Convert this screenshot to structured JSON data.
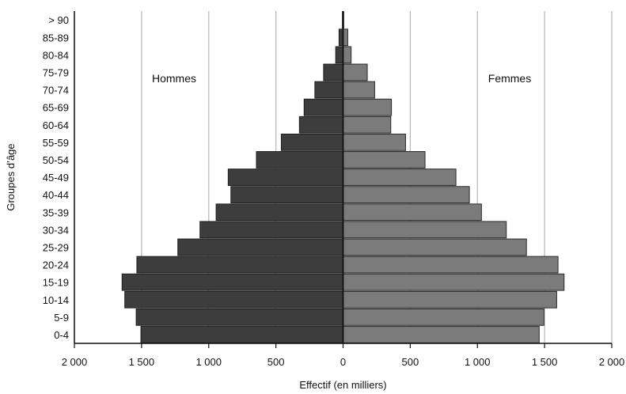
{
  "chart_data": {
    "type": "bar",
    "orientation": "horizontal",
    "layout": "population-pyramid",
    "title": "",
    "xlabel": "Effectif (en milliers)",
    "ylabel": "Groupes d’âge",
    "xlim": [
      -2000,
      2000
    ],
    "grid": true,
    "x_ticks": [
      -2000,
      -1500,
      -1000,
      -500,
      0,
      500,
      1000,
      1500,
      2000
    ],
    "x_tick_labels": [
      "2 000",
      "1 500",
      "1 000",
      "500",
      "0",
      "500",
      "1 000",
      "1 500",
      "2 000"
    ],
    "categories": [
      "0-4",
      "5-9",
      "10-14",
      "15-19",
      "20-24",
      "25-29",
      "30-34",
      "35-39",
      "40-44",
      "45-49",
      "50-54",
      "55-59",
      "60-64",
      "65-69",
      "70-74",
      "75-79",
      "80-84",
      "85-89",
      "> 90"
    ],
    "series": [
      {
        "name": "Hommes",
        "side": "left",
        "color": "#3d3d3d",
        "values": [
          1505,
          1540,
          1625,
          1645,
          1535,
          1230,
          1065,
          945,
          835,
          855,
          645,
          460,
          325,
          290,
          210,
          145,
          55,
          30,
          5
        ]
      },
      {
        "name": "Femmes",
        "side": "right",
        "color": "#7b7b7b",
        "values": [
          1460,
          1495,
          1590,
          1645,
          1600,
          1365,
          1215,
          1030,
          940,
          840,
          610,
          465,
          355,
          360,
          235,
          180,
          60,
          35,
          5
        ]
      }
    ]
  }
}
